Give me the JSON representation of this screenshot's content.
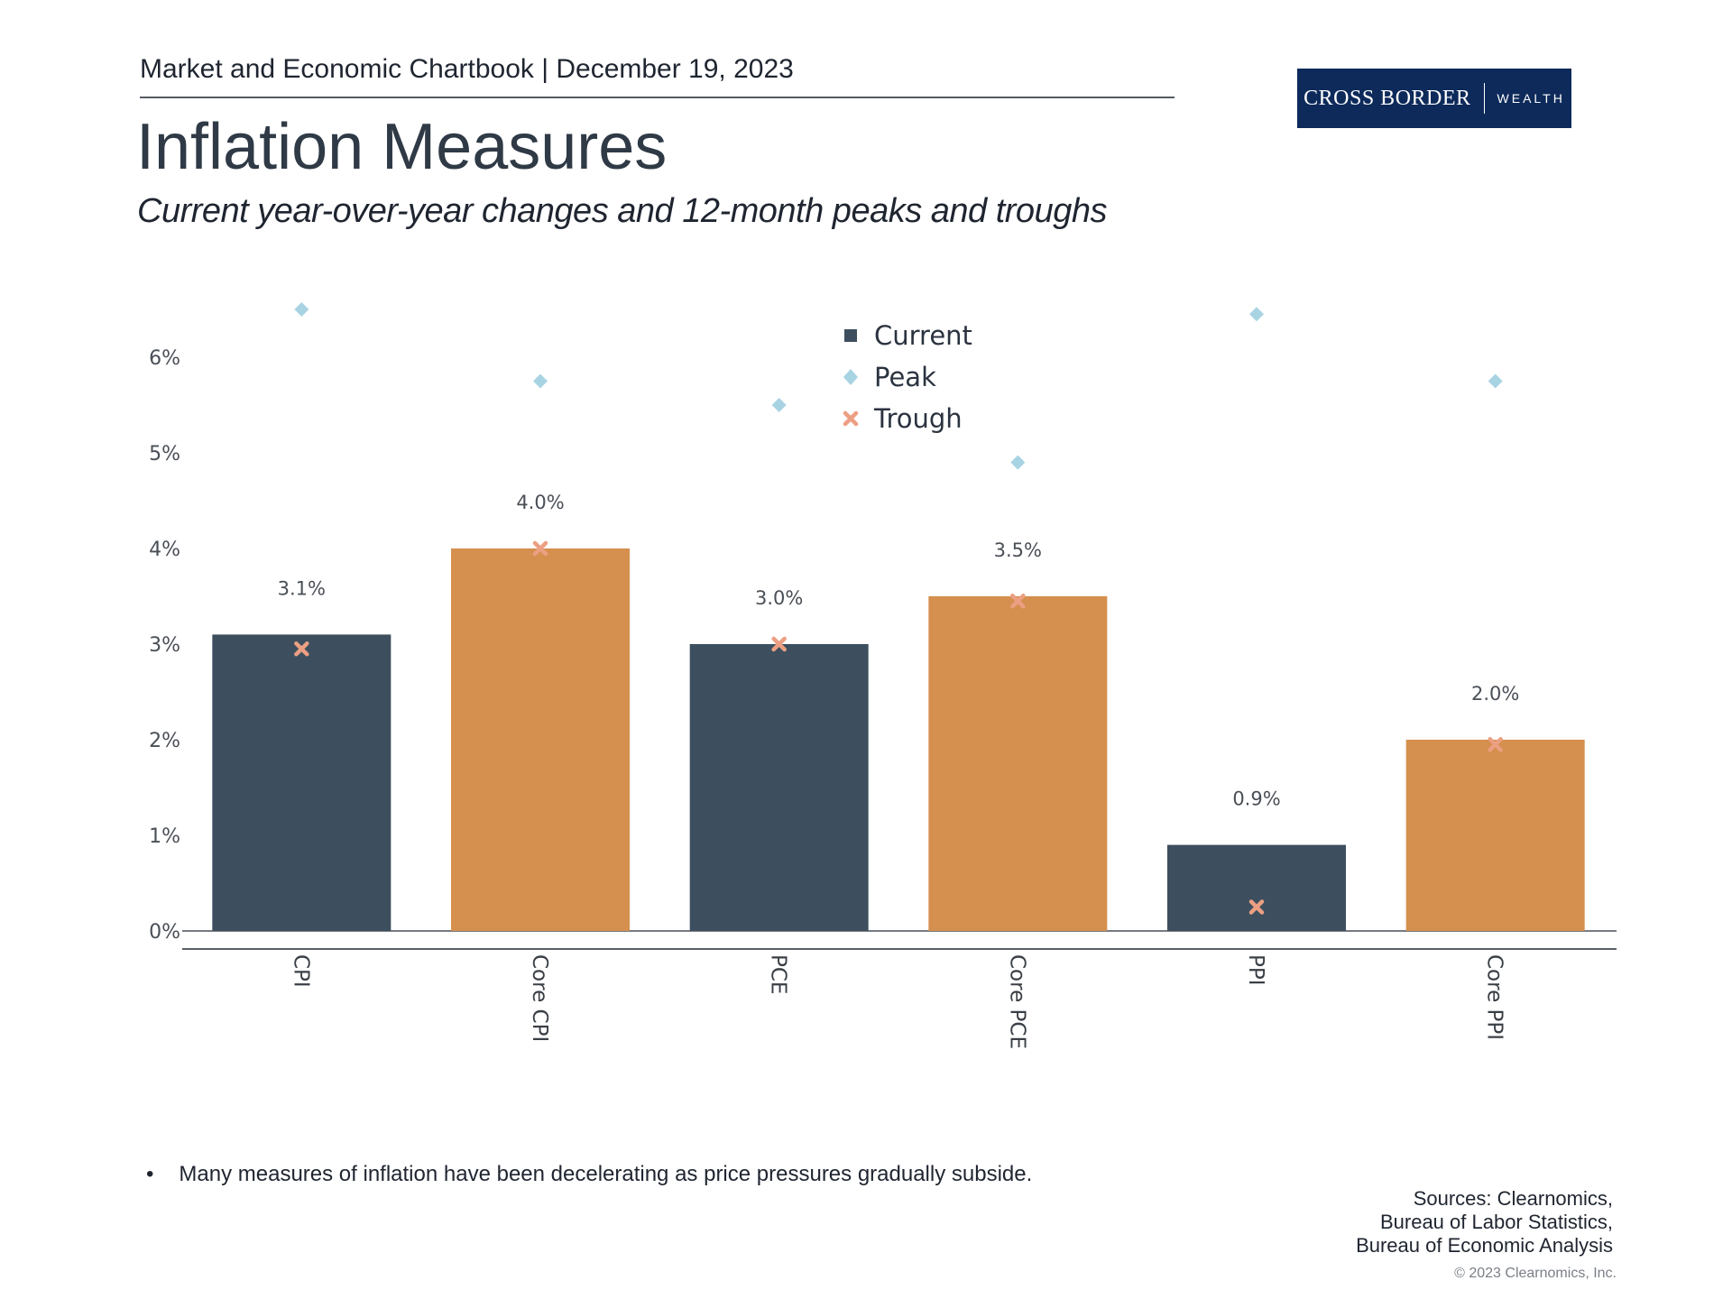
{
  "header": {
    "chartbook": "Market and Economic Chartbook | December 19, 2023",
    "logo_main": "CROSS BORDER",
    "logo_sub": "WEALTH",
    "title": "Inflation Measures",
    "subtitle": "Current year-over-year changes and 12-month peaks and troughs"
  },
  "colors": {
    "dark_bar": "#3d4f5e",
    "orange_bar": "#d58f4e",
    "peak": "#a8d3e3",
    "trough": "#ec9f82",
    "logo_bg": "#0d2a5a"
  },
  "chart_data": {
    "type": "bar",
    "categories": [
      "CPI",
      "Core CPI",
      "PCE",
      "Core PCE",
      "PPI",
      "Core PPI"
    ],
    "series": [
      {
        "name": "Current",
        "values": [
          3.1,
          4.0,
          3.0,
          3.5,
          0.9,
          2.0
        ],
        "labels": [
          "3.1%",
          "4.0%",
          "3.0%",
          "3.5%",
          "0.9%",
          "2.0%"
        ]
      },
      {
        "name": "Peak",
        "values": [
          6.5,
          5.75,
          5.5,
          4.9,
          6.45,
          5.75
        ]
      },
      {
        "name": "Trough",
        "values": [
          2.95,
          4.0,
          3.0,
          3.45,
          0.25,
          1.95
        ]
      }
    ],
    "yticks": [
      "0%",
      "1%",
      "2%",
      "3%",
      "4%",
      "5%",
      "6%"
    ],
    "ylim": [
      0,
      7
    ],
    "xlabel": "",
    "ylabel": "",
    "legend": [
      "Current",
      "Peak",
      "Trough"
    ],
    "legend_position": "top-center"
  },
  "footer": {
    "bullet": "Many measures of inflation have been decelerating as price pressures gradually subside.",
    "sources": [
      "Sources: Clearnomics,",
      "Bureau of Labor Statistics,",
      "Bureau of Economic Analysis"
    ],
    "copyright": "© 2023 Clearnomics, Inc."
  }
}
